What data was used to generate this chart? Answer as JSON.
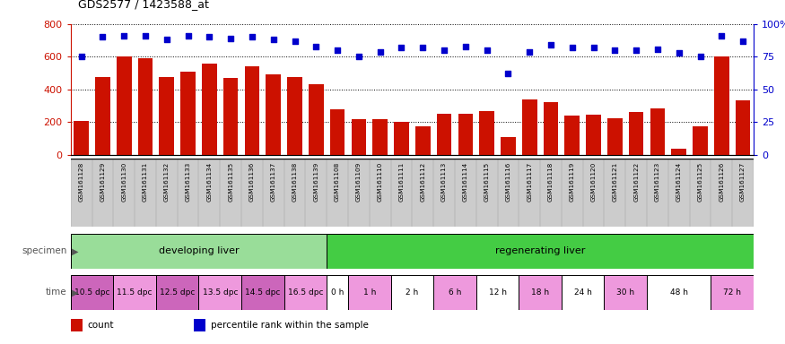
{
  "title": "GDS2577 / 1423588_at",
  "gsm_labels": [
    "GSM161128",
    "GSM161129",
    "GSM161130",
    "GSM161131",
    "GSM161132",
    "GSM161133",
    "GSM161134",
    "GSM161135",
    "GSM161136",
    "GSM161137",
    "GSM161138",
    "GSM161139",
    "GSM161108",
    "GSM161109",
    "GSM161110",
    "GSM161111",
    "GSM161112",
    "GSM161113",
    "GSM161114",
    "GSM161115",
    "GSM161116",
    "GSM161117",
    "GSM161118",
    "GSM161119",
    "GSM161120",
    "GSM161121",
    "GSM161122",
    "GSM161123",
    "GSM161124",
    "GSM161125",
    "GSM161126",
    "GSM161127"
  ],
  "bar_values": [
    205,
    478,
    603,
    590,
    475,
    510,
    560,
    470,
    540,
    490,
    475,
    430,
    280,
    220,
    220,
    200,
    175,
    250,
    250,
    270,
    110,
    340,
    325,
    240,
    245,
    225,
    260,
    285,
    40,
    175,
    600,
    335
  ],
  "percentile_values": [
    75,
    90,
    91,
    91,
    88,
    91,
    90,
    89,
    90,
    88,
    87,
    83,
    80,
    75,
    79,
    82,
    82,
    80,
    83,
    80,
    62,
    79,
    84,
    82,
    82,
    80,
    80,
    81,
    78,
    75,
    91,
    87
  ],
  "bar_color": "#cc1100",
  "dot_color": "#0000cc",
  "ylim_left": [
    0,
    800
  ],
  "ylim_right": [
    0,
    100
  ],
  "yticks_left": [
    0,
    200,
    400,
    600,
    800
  ],
  "yticks_right": [
    0,
    25,
    50,
    75,
    100
  ],
  "specimen_groups": [
    {
      "label": "developing liver",
      "start": 0,
      "end": 12,
      "color": "#99dd99"
    },
    {
      "label": "regenerating liver",
      "start": 12,
      "end": 32,
      "color": "#44cc44"
    }
  ],
  "time_groups": [
    {
      "label": "10.5 dpc",
      "start": 0,
      "end": 2,
      "color": "#cc66bb"
    },
    {
      "label": "11.5 dpc",
      "start": 2,
      "end": 4,
      "color": "#ee99dd"
    },
    {
      "label": "12.5 dpc",
      "start": 4,
      "end": 6,
      "color": "#cc66bb"
    },
    {
      "label": "13.5 dpc",
      "start": 6,
      "end": 8,
      "color": "#ee99dd"
    },
    {
      "label": "14.5 dpc",
      "start": 8,
      "end": 10,
      "color": "#cc66bb"
    },
    {
      "label": "16.5 dpc",
      "start": 10,
      "end": 12,
      "color": "#ee99dd"
    },
    {
      "label": "0 h",
      "start": 12,
      "end": 13,
      "color": "#ffffff"
    },
    {
      "label": "1 h",
      "start": 13,
      "end": 15,
      "color": "#ee99dd"
    },
    {
      "label": "2 h",
      "start": 15,
      "end": 17,
      "color": "#ffffff"
    },
    {
      "label": "6 h",
      "start": 17,
      "end": 19,
      "color": "#ee99dd"
    },
    {
      "label": "12 h",
      "start": 19,
      "end": 21,
      "color": "#ffffff"
    },
    {
      "label": "18 h",
      "start": 21,
      "end": 23,
      "color": "#ee99dd"
    },
    {
      "label": "24 h",
      "start": 23,
      "end": 25,
      "color": "#ffffff"
    },
    {
      "label": "30 h",
      "start": 25,
      "end": 27,
      "color": "#ee99dd"
    },
    {
      "label": "48 h",
      "start": 27,
      "end": 30,
      "color": "#ffffff"
    },
    {
      "label": "72 h",
      "start": 30,
      "end": 32,
      "color": "#ee99dd"
    }
  ],
  "legend_items": [
    {
      "color": "#cc1100",
      "label": "count"
    },
    {
      "color": "#0000cc",
      "label": "percentile rank within the sample"
    }
  ],
  "bg_color": "#ffffff",
  "plot_bg_color": "#ffffff",
  "grid_color": "#000000",
  "xtick_bg": "#cccccc"
}
